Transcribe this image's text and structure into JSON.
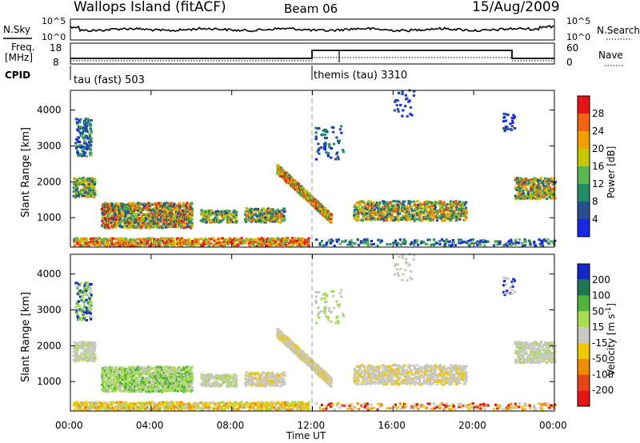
{
  "header": {
    "site": "Wallops Island (fitACF)",
    "beam": "Beam 06",
    "date": "15/Aug/2009"
  },
  "top_panels": {
    "nsky_label": "N.Sky",
    "nsky_ticks": [
      "10^5",
      "10^0"
    ],
    "nsearch_label": "N.Search",
    "nsearch_ticks": [
      "10^5",
      "10^0"
    ],
    "freq_label": [
      "Freq.",
      "[MHz]"
    ],
    "freq_ticks": [
      "18",
      "8"
    ],
    "nave_label": "Nave",
    "nave_ticks": [
      "60",
      "0"
    ],
    "cpid_label": "CPID",
    "cpid_segments": [
      {
        "label": "tau (fast) 503",
        "start_hour": 0.0
      },
      {
        "label": "themis (tau) 3310",
        "start_hour": 12.0
      }
    ]
  },
  "chart_data": [
    {
      "type": "heatmap",
      "title": "",
      "xlabel": "Time UT",
      "ylabel": "Slant Range [km]",
      "x_range_hours": [
        0,
        24
      ],
      "x_ticks": [
        "00:00",
        "04:00",
        "08:00",
        "12:00",
        "16:00",
        "20:00",
        "00:00"
      ],
      "ylim": [
        180,
        4550
      ],
      "y_ticks": [
        1000,
        2000,
        3000,
        4000
      ],
      "colorbar": {
        "label": "Power [dB]",
        "ticks": [
          "4",
          "8",
          "12",
          "16",
          "20",
          "24",
          "28"
        ],
        "colors": [
          "#1428e6",
          "#28508c",
          "#1e8c64",
          "#5ab450",
          "#c8c800",
          "#f0a000",
          "#f06414",
          "#e61414"
        ]
      },
      "regions": [
        {
          "x": [
            0.0,
            11.8
          ],
          "y": [
            200,
            420
          ],
          "value": "20-28 dB"
        },
        {
          "x": [
            0.1,
            1.2
          ],
          "y": [
            1550,
            2100
          ],
          "value": "8-24 dB"
        },
        {
          "x": [
            0.2,
            1.0
          ],
          "y": [
            2700,
            3750
          ],
          "value": "4-16 dB"
        },
        {
          "x": [
            1.5,
            6.0
          ],
          "y": [
            700,
            1400
          ],
          "value": "12-28 dB"
        },
        {
          "x": [
            6.4,
            8.2
          ],
          "y": [
            850,
            1200
          ],
          "value": "8-20 dB"
        },
        {
          "x": [
            8.6,
            10.6
          ],
          "y": [
            850,
            1250
          ],
          "value": "8-20 dB"
        },
        {
          "x": [
            10.2,
            12.9
          ],
          "y": [
            800,
            2350
          ],
          "value": "12-28 dB"
        },
        {
          "x": [
            14.0,
            19.6
          ],
          "y": [
            900,
            1450
          ],
          "value": "12-24 dB"
        },
        {
          "x": [
            22.0,
            24.0
          ],
          "y": [
            1500,
            2100
          ],
          "value": "8-24 dB"
        }
      ]
    },
    {
      "type": "heatmap",
      "title": "",
      "xlabel": "Time UT",
      "ylabel": "Slant Range [km]",
      "x_range_hours": [
        0,
        24
      ],
      "x_ticks": [
        "00:00",
        "04:00",
        "08:00",
        "12:00",
        "16:00",
        "20:00",
        "00:00"
      ],
      "ylim": [
        180,
        4550
      ],
      "y_ticks": [
        1000,
        2000,
        3000,
        4000
      ],
      "colorbar": {
        "label": "Velocity [m s^-1]",
        "ticks": [
          "200",
          "100",
          "50",
          "15",
          "-15",
          "-50",
          "-100",
          "-200"
        ],
        "colors": [
          "#1428c8",
          "#1e7850",
          "#50b43c",
          "#aadc50",
          "#c8c8c0",
          "#f0c800",
          "#f08c00",
          "#e64614",
          "#e61414"
        ]
      },
      "regions": [
        {
          "x": [
            0.0,
            12.0
          ],
          "y": [
            200,
            500
          ],
          "value": "-15 to -100 m/s"
        },
        {
          "x": [
            0.2,
            6.5
          ],
          "y": [
            700,
            1400
          ],
          "value": "15 to 100 m/s"
        },
        {
          "x": [
            0.1,
            1.2
          ],
          "y": [
            1600,
            2100
          ],
          "value": "-15 to 15 m/s"
        },
        {
          "x": [
            6.0,
            10.6
          ],
          "y": [
            850,
            1250
          ],
          "value": "-15 to 15 m/s"
        },
        {
          "x": [
            10.3,
            13.0
          ],
          "y": [
            800,
            2300
          ],
          "value": "-15 to 15 m/s"
        },
        {
          "x": [
            14.0,
            19.6
          ],
          "y": [
            900,
            1400
          ],
          "value": "-15 to 15 m/s"
        },
        {
          "x": [
            22.0,
            24.0
          ],
          "y": [
            1500,
            2100
          ],
          "value": "-15 to 15 m/s"
        }
      ]
    }
  ]
}
